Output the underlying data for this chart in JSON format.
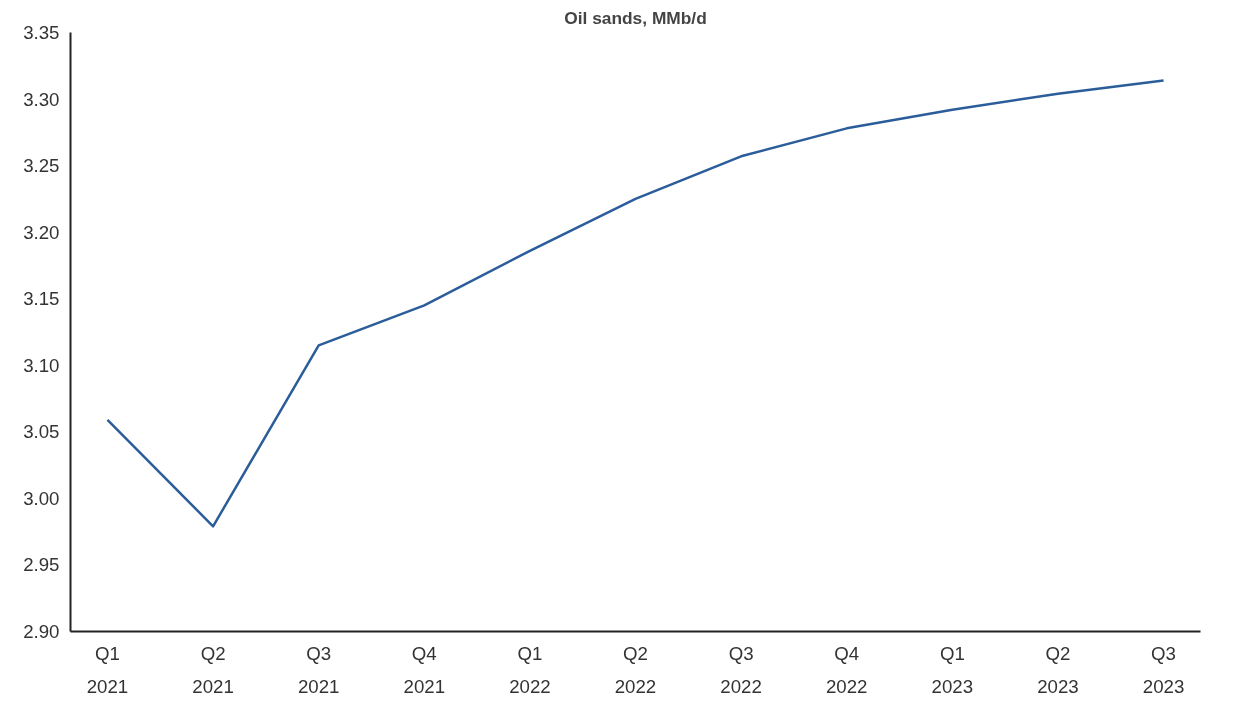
{
  "chart_data": {
    "type": "line",
    "title": "Oil sands, MMb/d",
    "categories": [
      "Q1\n2021",
      "Q2\n2021",
      "Q3\n2021",
      "Q4\n2021",
      "Q1\n2022",
      "Q2\n2022",
      "Q3\n2022",
      "Q4\n2022",
      "Q1\n2023",
      "Q2\n2023",
      "Q3\n2023"
    ],
    "series": [
      {
        "color": "#2a5d9a",
        "values": [
          3.059,
          2.979,
          3.115,
          3.145,
          3.186,
          3.225,
          3.257,
          3.278,
          3.292,
          3.304,
          3.314
        ]
      }
    ],
    "ylim": [
      2.9,
      3.35
    ],
    "yticks": [
      {
        "value": 2.9,
        "label": "2.90"
      },
      2.95,
      {
        "value": 3.0,
        "label": "3.00"
      },
      3.05,
      {
        "value": 3.1,
        "label": "3.10"
      },
      3.15,
      {
        "value": 3.2,
        "label": "3.20"
      },
      3.25,
      {
        "value": 3.3,
        "label": "3.30"
      },
      3.35
    ],
    "line_style": "solid"
  }
}
